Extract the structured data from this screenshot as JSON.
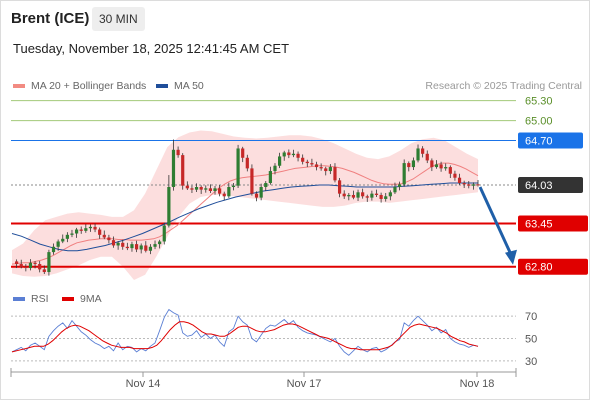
{
  "header": {
    "symbol": "Brent (ICE)",
    "timeframe": "30 MIN",
    "timestamp": "Tuesday, November 18, 2025 12:41:45 AM CET"
  },
  "legend": {
    "items": [
      {
        "label": "MA 20 + Bollinger Bands",
        "color": "#f28b82"
      },
      {
        "label": "MA 50",
        "color": "#1f4e9a"
      }
    ],
    "copyright": "Research © 2025 Trading Central"
  },
  "rsi_legend": {
    "items": [
      {
        "label": "RSI",
        "color": "#5b7fd4"
      },
      {
        "label": "9MA",
        "color": "#e00000"
      }
    ]
  },
  "chart_data": {
    "type": "candlestick",
    "price_axis_range": [
      62.6,
      65.4
    ],
    "levels": [
      {
        "value": "65.30",
        "kind": "target",
        "color": "#7cb342"
      },
      {
        "value": "65.00",
        "kind": "target",
        "color": "#7cb342"
      },
      {
        "value": "64.70",
        "kind": "resistance",
        "color": "#1a73e8"
      },
      {
        "value": "64.03",
        "kind": "last",
        "color": "#333333"
      },
      {
        "value": "63.45",
        "kind": "support",
        "color": "#e00000"
      },
      {
        "value": "62.80",
        "kind": "support",
        "color": "#e00000"
      }
    ],
    "x_ticks": [
      "Nov 14",
      "Nov 17",
      "Nov 18"
    ],
    "arrow": {
      "from": 64.03,
      "to": 62.8,
      "direction": "down",
      "color": "#1f5fa8"
    },
    "close_path": [
      62.88,
      62.84,
      62.8,
      62.78,
      62.86,
      62.84,
      62.76,
      62.72,
      63.02,
      63.1,
      63.18,
      63.22,
      63.28,
      63.3,
      63.36,
      63.34,
      63.38,
      63.4,
      63.36,
      63.28,
      63.24,
      63.2,
      63.12,
      63.16,
      63.1,
      63.08,
      63.14,
      63.06,
      63.12,
      63.04,
      63.1,
      63.14,
      63.18,
      63.42,
      64.0,
      64.56,
      64.48,
      64.02,
      63.98,
      63.96,
      64.0,
      63.96,
      63.98,
      63.94,
      63.98,
      63.9,
      63.86,
      64.0,
      64.02,
      64.58,
      64.44,
      64.28,
      63.9,
      63.84,
      64.0,
      64.06,
      64.24,
      64.32,
      64.46,
      64.52,
      64.48,
      64.5,
      64.44,
      64.38,
      64.36,
      64.34,
      64.3,
      64.28,
      64.24,
      64.3,
      64.1,
      63.9,
      63.86,
      63.88,
      63.84,
      63.92,
      63.86,
      63.84,
      63.9,
      63.88,
      63.82,
      63.86,
      63.92,
      64.0,
      64.04,
      64.36,
      64.3,
      64.4,
      64.58,
      64.5,
      64.4,
      64.3,
      64.34,
      64.28,
      64.3,
      64.2,
      64.14,
      64.06,
      64.04,
      64.02,
      64.04,
      64.03
    ],
    "ma20_path": [
      62.84,
      62.85,
      62.86,
      62.86,
      62.88,
      62.9,
      62.93,
      62.97,
      63.02,
      63.07,
      63.12,
      63.16,
      63.18,
      63.2,
      63.21,
      63.22,
      63.22,
      63.22,
      63.21,
      63.21,
      63.2,
      63.2,
      63.2,
      63.21,
      63.22,
      63.25,
      63.3,
      63.36,
      63.42,
      63.5,
      63.58,
      63.66,
      63.74,
      63.82,
      63.9,
      63.98,
      64.04,
      64.09,
      64.12,
      64.14,
      64.15,
      64.16,
      64.17,
      64.18,
      64.2,
      64.22,
      64.24,
      64.26,
      64.28,
      64.29,
      64.3,
      64.31,
      64.32,
      64.32,
      64.31,
      64.3,
      64.28,
      64.25,
      64.22,
      64.18,
      64.14,
      64.1,
      64.07,
      64.05,
      64.04,
      64.04,
      64.05,
      64.08,
      64.12,
      64.18,
      64.24,
      64.3,
      64.34,
      64.36,
      64.36,
      64.34,
      64.31,
      64.27,
      64.22,
      64.17
    ],
    "ma50_path": [
      63.3,
      63.26,
      63.2,
      63.14,
      63.1,
      63.06,
      63.04,
      63.04,
      63.06,
      63.09,
      63.12,
      63.16,
      63.2,
      63.25,
      63.3,
      63.36,
      63.42,
      63.48,
      63.55,
      63.61,
      63.67,
      63.72,
      63.77,
      63.81,
      63.85,
      63.88,
      63.91,
      63.94,
      63.96,
      63.98,
      64.0,
      64.01,
      64.02,
      64.03,
      64.03,
      64.02,
      64.01,
      64.0,
      64.0,
      64.0,
      64.0,
      64.0,
      64.01,
      64.02,
      64.03,
      64.04,
      64.05,
      64.06,
      64.06,
      64.06,
      64.06
    ],
    "bb_upper_path": [
      63.05,
      63.15,
      63.35,
      63.5,
      63.55,
      63.6,
      63.62,
      63.6,
      63.58,
      63.55,
      63.55,
      63.65,
      63.9,
      64.25,
      64.6,
      64.75,
      64.82,
      64.85,
      64.84,
      64.8,
      64.76,
      64.74,
      64.73,
      64.74,
      64.76,
      64.78,
      64.78,
      64.76,
      64.72,
      64.66,
      64.58,
      64.5,
      64.44,
      64.42,
      64.46,
      64.55,
      64.66,
      64.72,
      64.74,
      64.7,
      64.6,
      64.5,
      64.42
    ],
    "bb_lower_path": [
      62.7,
      62.66,
      62.65,
      62.66,
      62.7,
      62.76,
      62.82,
      62.9,
      62.95,
      62.95,
      62.8,
      62.6,
      62.68,
      62.95,
      63.25,
      63.55,
      63.75,
      63.85,
      63.88,
      63.88,
      63.86,
      63.84,
      63.82,
      63.8,
      63.78,
      63.76,
      63.74,
      63.72,
      63.7,
      63.7,
      63.72,
      63.76,
      63.78,
      63.78,
      63.76,
      63.78,
      63.8,
      63.82,
      63.84,
      63.86,
      63.88,
      63.9,
      63.92
    ],
    "rsi": {
      "levels": [
        70,
        50,
        30
      ],
      "axis_range": [
        20,
        80
      ],
      "rsi_path": [
        38,
        40,
        42,
        39,
        44,
        46,
        43,
        40,
        52,
        57,
        61,
        64,
        59,
        66,
        61,
        56,
        53,
        49,
        46,
        44,
        41,
        43,
        39,
        46,
        40,
        43,
        42,
        38,
        41,
        39,
        43,
        46,
        57,
        69,
        76,
        73,
        71,
        55,
        52,
        53,
        57,
        51,
        54,
        50,
        53,
        47,
        43,
        56,
        59,
        70,
        65,
        62,
        50,
        47,
        53,
        59,
        62,
        61,
        64,
        67,
        63,
        66,
        60,
        57,
        55,
        54,
        53,
        51,
        49,
        47,
        50,
        43,
        38,
        35,
        39,
        43,
        40,
        38,
        41,
        42,
        38,
        40,
        43,
        47,
        49,
        64,
        61,
        66,
        70,
        66,
        62,
        57,
        60,
        55,
        58,
        50,
        47,
        45,
        44,
        42,
        44,
        43
      ],
      "ma9_path": [
        38,
        39,
        40,
        41,
        42,
        43,
        43,
        43,
        45,
        48,
        52,
        56,
        59,
        61,
        62,
        61,
        59,
        57,
        54,
        51,
        48,
        46,
        44,
        43,
        42,
        42,
        42,
        41,
        41,
        41,
        41,
        42,
        44,
        48,
        53,
        58,
        62,
        65,
        65,
        64,
        62,
        59,
        56,
        54,
        54,
        53,
        52,
        52,
        54,
        57,
        60,
        61,
        61,
        59,
        57,
        56,
        56,
        57,
        58,
        60,
        62,
        63,
        63,
        62,
        60,
        58,
        56,
        54,
        52,
        51,
        50,
        48,
        46,
        44,
        42,
        41,
        41,
        40,
        40,
        40,
        40,
        40,
        41,
        42,
        44,
        48,
        52,
        56,
        60,
        62,
        63,
        62,
        61,
        60,
        59,
        57,
        55,
        52,
        50,
        48,
        47,
        45,
        44,
        43
      ]
    }
  }
}
